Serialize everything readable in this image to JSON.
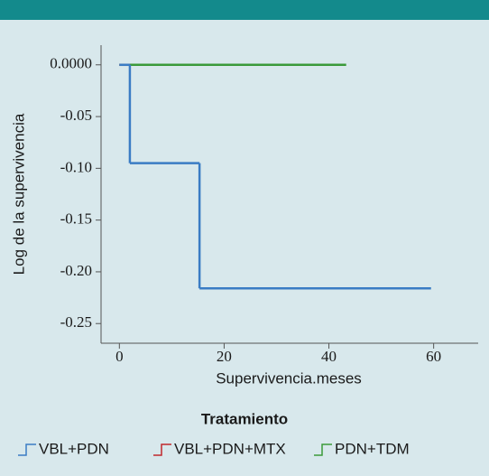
{
  "chart_data": {
    "type": "step",
    "xlabel": "Supervivencia.meses",
    "ylabel": "Log de la supervivencia",
    "legend_title": "Tratamiento",
    "legend": "bottom",
    "series": [
      {
        "name": "VBL+PDN",
        "color": "#3a7cc4",
        "x": [
          0,
          2,
          15.3,
          59.5
        ],
        "values": [
          0,
          -0.095,
          -0.216,
          -0.216
        ]
      },
      {
        "name": "VBL+PDN+MTX",
        "color": "#c0282d",
        "x": [
          0,
          2
        ],
        "values": [
          0,
          0
        ]
      },
      {
        "name": "PDN+TDM",
        "color": "#3a9a3a",
        "x": [
          0,
          43.3
        ],
        "values": [
          0,
          0
        ]
      }
    ],
    "xlim": [
      -3.5,
      68.5
    ],
    "xticks": [
      0,
      20,
      40,
      60
    ],
    "ylim": [
      -0.269,
      0.019
    ],
    "yticks": [
      {
        "value": 0,
        "label": "0.0000"
      },
      -0.05,
      {
        "value": -0.1,
        "label": "-0.10"
      },
      -0.15,
      {
        "value": -0.2,
        "label": "-0.20"
      },
      -0.25
    ]
  }
}
